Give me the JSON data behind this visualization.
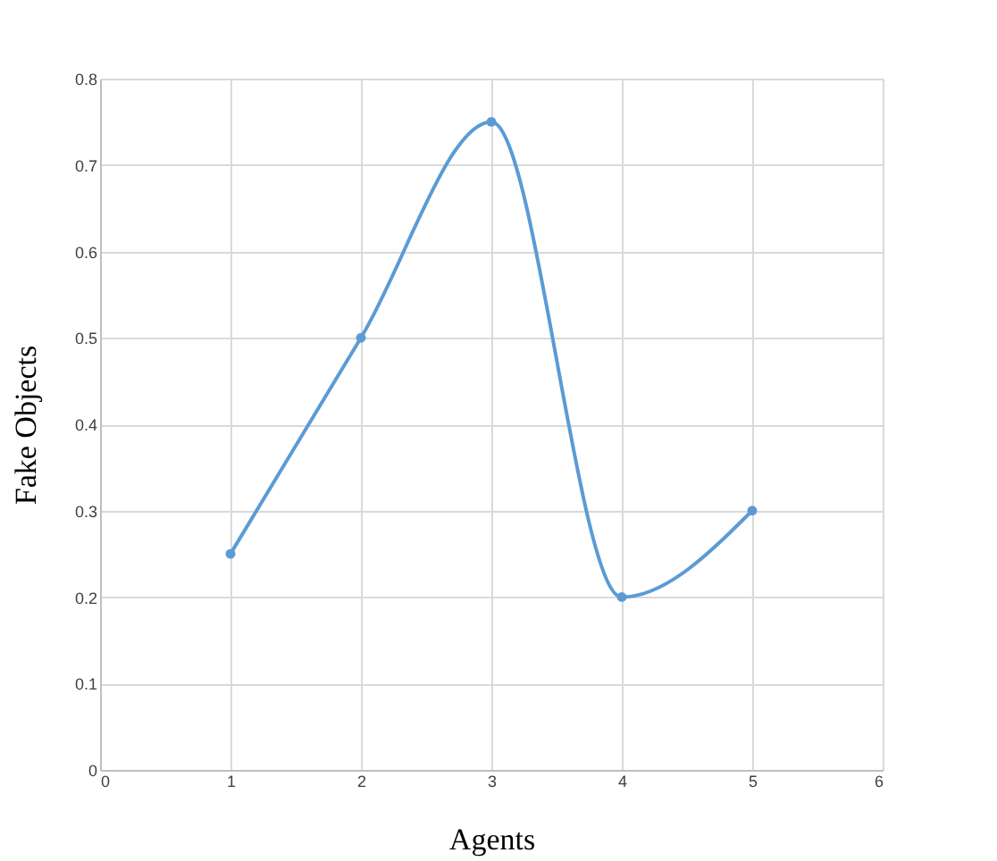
{
  "chart_data": {
    "type": "line",
    "xlabel": "Agents",
    "ylabel": "Fake Objects",
    "x": [
      1,
      2,
      3,
      4,
      5
    ],
    "series": [
      {
        "color": "#5b9bd5",
        "values": [
          0.25,
          0.5,
          0.75,
          0.2,
          0.3
        ]
      }
    ],
    "xlim": [
      0,
      6
    ],
    "xticks": [
      0,
      1,
      2,
      3,
      4,
      5,
      6
    ],
    "ylim": [
      0,
      0.8
    ],
    "yticks": [
      0,
      0.1,
      0.2,
      0.3,
      0.4,
      0.5,
      0.6,
      0.7,
      0.8
    ],
    "grid": true,
    "marker": "circle",
    "line_style": "solid"
  }
}
